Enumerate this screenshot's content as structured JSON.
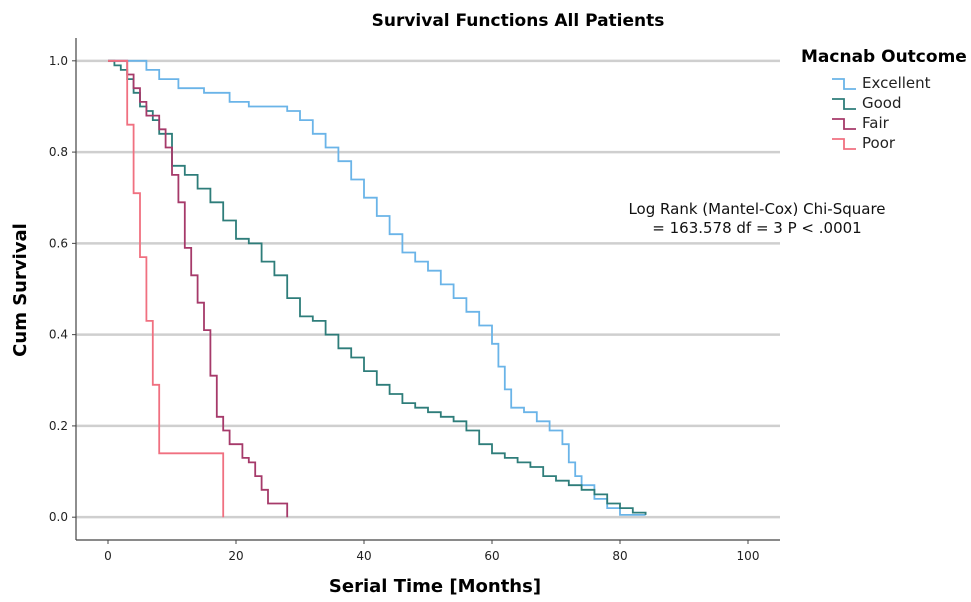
{
  "chart_data": {
    "type": "line",
    "title": "Survival Functions All Patients",
    "xlabel": "Serial Time [Months]",
    "ylabel": "Cum Survival",
    "xlim": [
      -5,
      105
    ],
    "ylim": [
      -0.05,
      1.05
    ],
    "x_ticks": [
      0,
      20,
      40,
      60,
      80,
      100
    ],
    "y_ticks": [
      0.0,
      0.2,
      0.4,
      0.6,
      0.8,
      1.0
    ],
    "y_tick_labels": [
      "0.0",
      "0.2",
      "0.4",
      "0.6",
      "0.8",
      "1.0"
    ],
    "grid": "horizontal",
    "legend": {
      "title": "Macnab Outcome",
      "position": "top-right"
    },
    "annotation": [
      "Log Rank (Mantel-Cox) Chi-Square",
      "= 163.578 df = 3 P < .0001"
    ],
    "series": [
      {
        "name": "Excellent",
        "color": "#6ab4e8",
        "x": [
          0,
          3,
          6,
          8,
          11,
          15,
          19,
          22,
          25,
          28,
          30,
          32,
          34,
          36,
          38,
          40,
          42,
          44,
          46,
          48,
          50,
          52,
          54,
          56,
          58,
          60,
          61,
          62,
          63,
          65,
          67,
          69,
          71,
          72,
          73,
          74,
          76,
          78,
          80,
          84
        ],
        "y": [
          1.0,
          1.0,
          0.98,
          0.96,
          0.94,
          0.93,
          0.91,
          0.9,
          0.9,
          0.89,
          0.87,
          0.84,
          0.81,
          0.78,
          0.74,
          0.7,
          0.66,
          0.62,
          0.58,
          0.56,
          0.54,
          0.51,
          0.48,
          0.45,
          0.42,
          0.38,
          0.33,
          0.28,
          0.24,
          0.23,
          0.21,
          0.19,
          0.16,
          0.12,
          0.09,
          0.07,
          0.04,
          0.02,
          0.005,
          0.005
        ]
      },
      {
        "name": "Good",
        "color": "#2e7d7a",
        "x": [
          0,
          1,
          2,
          3,
          4,
          5,
          6,
          7,
          8,
          10,
          12,
          14,
          16,
          18,
          20,
          22,
          24,
          26,
          28,
          30,
          32,
          34,
          36,
          38,
          40,
          42,
          44,
          46,
          48,
          50,
          52,
          54,
          56,
          58,
          60,
          62,
          64,
          66,
          68,
          70,
          72,
          74,
          76,
          78,
          80,
          82,
          84
        ],
        "y": [
          1.0,
          0.99,
          0.98,
          0.96,
          0.93,
          0.9,
          0.89,
          0.87,
          0.84,
          0.77,
          0.75,
          0.72,
          0.69,
          0.65,
          0.61,
          0.6,
          0.56,
          0.53,
          0.48,
          0.44,
          0.43,
          0.4,
          0.37,
          0.35,
          0.32,
          0.29,
          0.27,
          0.25,
          0.24,
          0.23,
          0.22,
          0.21,
          0.19,
          0.16,
          0.14,
          0.13,
          0.12,
          0.11,
          0.09,
          0.08,
          0.07,
          0.06,
          0.05,
          0.03,
          0.02,
          0.01,
          0.005
        ]
      },
      {
        "name": "Fair",
        "color": "#a63a6a",
        "x": [
          0,
          2,
          3,
          4,
          5,
          6,
          7,
          8,
          9,
          10,
          11,
          12,
          13,
          14,
          15,
          16,
          17,
          18,
          19,
          20,
          21,
          22,
          23,
          24,
          25,
          26,
          27,
          28
        ],
        "y": [
          1.0,
          1.0,
          0.97,
          0.94,
          0.91,
          0.88,
          0.88,
          0.85,
          0.81,
          0.75,
          0.69,
          0.59,
          0.53,
          0.47,
          0.41,
          0.31,
          0.22,
          0.19,
          0.16,
          0.16,
          0.13,
          0.12,
          0.09,
          0.06,
          0.03,
          0.03,
          0.03,
          0.0
        ]
      },
      {
        "name": "Poor",
        "color": "#f07080",
        "x": [
          0,
          2,
          3,
          4,
          5,
          6,
          7,
          8,
          9,
          18
        ],
        "y": [
          1.0,
          1.0,
          0.86,
          0.71,
          0.57,
          0.43,
          0.29,
          0.14,
          0.14,
          0.0
        ]
      }
    ]
  }
}
